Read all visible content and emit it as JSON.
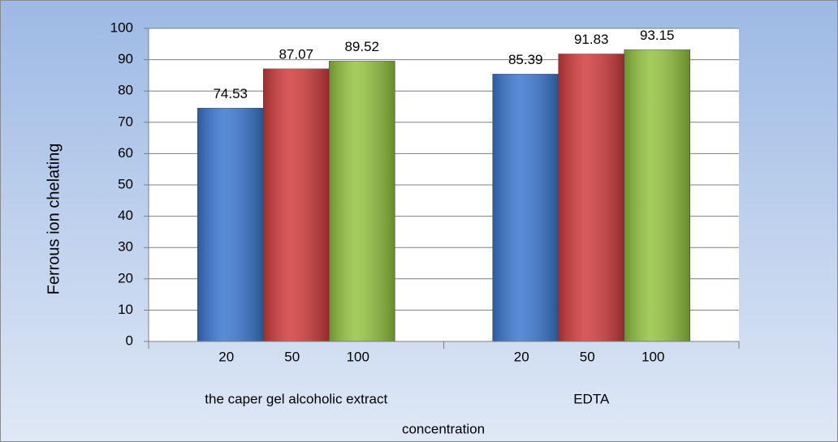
{
  "chart_data": {
    "type": "bar",
    "categories": [
      "the caper gel alcoholic extract",
      "EDTA"
    ],
    "series": [
      {
        "name": "20",
        "color": "#3a78d0",
        "values": [
          74.53,
          85.39
        ]
      },
      {
        "name": "50",
        "color": "#d23c3c",
        "values": [
          87.07,
          91.83
        ]
      },
      {
        "name": "100",
        "color": "#93c43f",
        "values": [
          89.52,
          93.15
        ]
      }
    ],
    "x_label": "concentration",
    "y_label": "Ferrous  ion  chelating",
    "ylim": [
      0,
      100
    ],
    "yticks": [
      0,
      10,
      20,
      30,
      40,
      50,
      60,
      70,
      80,
      90,
      100
    ],
    "grid": true
  }
}
